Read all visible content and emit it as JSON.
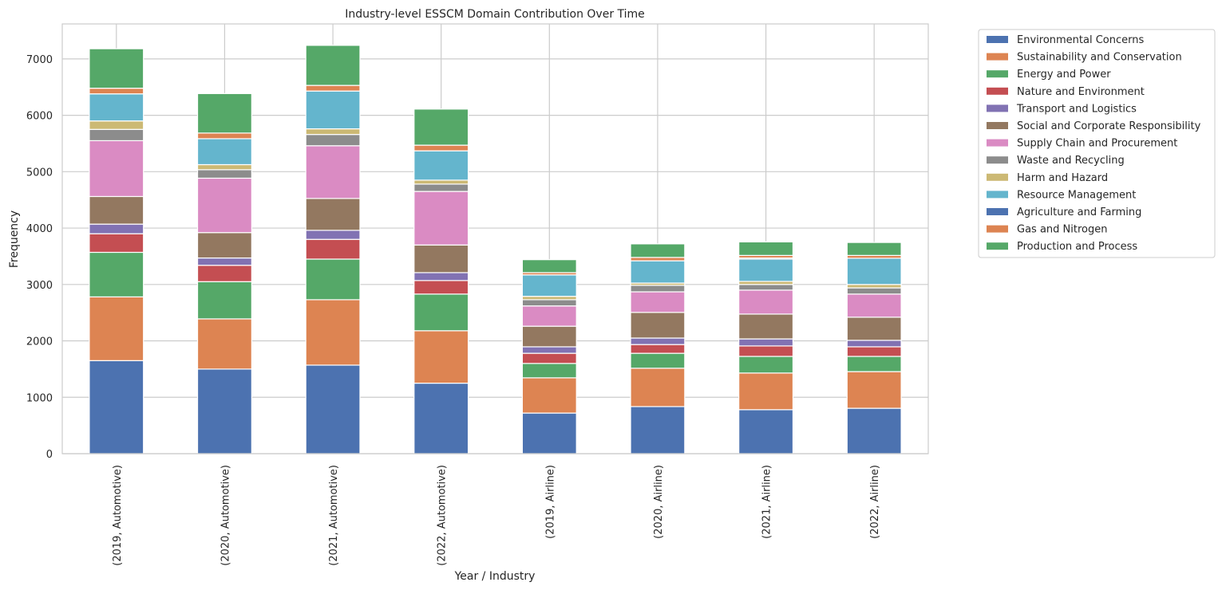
{
  "chart_data": {
    "type": "bar",
    "stacked": true,
    "title": "Industry-level ESSCM Domain Contribution Over Time",
    "xlabel": "Year / Industry",
    "ylabel": "Frequency",
    "ylim": [
      0,
      7620
    ],
    "yticks": [
      0,
      1000,
      2000,
      3000,
      4000,
      5000,
      6000,
      7000
    ],
    "grid": true,
    "legend_position": "outside-right",
    "categories": [
      "(2019, Automotive)",
      "(2020, Automotive)",
      "(2021, Automotive)",
      "(2022, Automotive)",
      "(2019, Airline)",
      "(2020, Airline)",
      "(2021, Airline)",
      "(2022, Airline)"
    ],
    "series": [
      {
        "name": "Environmental Concerns",
        "color": "#4C72B0",
        "values": [
          1650,
          1500,
          1570,
          1250,
          720,
          835,
          780,
          805
        ]
      },
      {
        "name": "Sustainability and Conservation",
        "color": "#DD8452",
        "values": [
          1130,
          890,
          1160,
          930,
          625,
          680,
          650,
          650
        ]
      },
      {
        "name": "Energy and Power",
        "color": "#55A868",
        "values": [
          790,
          660,
          720,
          650,
          255,
          265,
          295,
          270
        ]
      },
      {
        "name": "Nature and Environment",
        "color": "#C44E52",
        "values": [
          330,
          290,
          350,
          240,
          180,
          155,
          185,
          170
        ]
      },
      {
        "name": "Transport and Logistics",
        "color": "#8172B3",
        "values": [
          170,
          130,
          160,
          140,
          115,
          115,
          125,
          115
        ]
      },
      {
        "name": "Social and Corporate Responsibility",
        "color": "#937860",
        "values": [
          490,
          450,
          565,
          490,
          365,
          455,
          440,
          410
        ]
      },
      {
        "name": "Supply Chain and Procurement",
        "color": "#DA8BC3",
        "values": [
          990,
          965,
          935,
          950,
          360,
          365,
          425,
          410
        ]
      },
      {
        "name": "Waste and Recycling",
        "color": "#8C8C8C",
        "values": [
          200,
          150,
          200,
          130,
          110,
          115,
          100,
          110
        ]
      },
      {
        "name": "Harm and Hazard",
        "color": "#CCB974",
        "values": [
          150,
          90,
          100,
          70,
          60,
          40,
          55,
          60
        ]
      },
      {
        "name": "Resource Management",
        "color": "#64B5CD",
        "values": [
          480,
          460,
          670,
          520,
          380,
          395,
          395,
          465
        ]
      },
      {
        "name": "Agriculture and Farming",
        "color": "#4C72B0",
        "values": [
          0,
          0,
          0,
          0,
          0,
          0,
          20,
          0
        ]
      },
      {
        "name": "Gas and Nitrogen",
        "color": "#DD8452",
        "values": [
          100,
          100,
          100,
          100,
          40,
          60,
          45,
          50
        ]
      },
      {
        "name": "Production and Process",
        "color": "#55A868",
        "values": [
          700,
          700,
          710,
          640,
          230,
          240,
          240,
          230
        ]
      }
    ]
  }
}
